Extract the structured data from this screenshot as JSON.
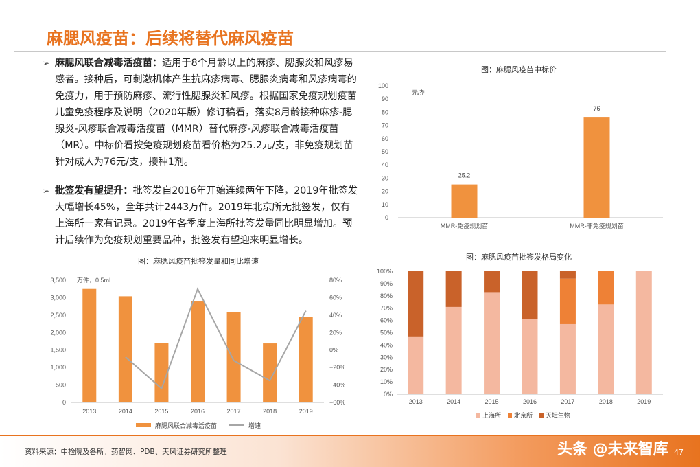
{
  "page": {
    "title": "麻腮风疫苗：后续将替代麻风疫苗",
    "source": "资料来源：中检院及各所，药智网、PDB、天风证券研究所整理",
    "watermark": "头条 @未来智库",
    "page_number": "47"
  },
  "bullets": [
    {
      "marker": "➢",
      "bold": "麻腮风联合减毒活疫苗：",
      "text": "适用于8个月龄以上的麻疹、腮腺炎和风疹易感者。接种后，可刺激机体产生抗麻疹病毒、腮腺炎病毒和风疹病毒的免疫力，用于预防麻疹、流行性腮腺炎和风疹。根据国家免疫规划疫苗儿童免疫程序及说明（2020年版）修订稿看，落实8月龄接种麻疹-腮腺炎-风疹联合减毒活疫苗（MMR）替代麻疹-风疹联合减毒活疫苗（MR）。中标价看按免疫规划疫苗看价格为25.2元/支，非免疫规划苗针对成人为76元/支，接种1剂。"
    },
    {
      "marker": "➢",
      "bold": "批签发有望提升：",
      "text": "批签发自2016年开始连续两年下降，2019年批签发大幅增长45%，全年共计2443万件。2019年北京所无批签发，仅有上海所一家有记录。2019年各季度上海所批签发量同比明显增加。预计后续作为免疫规划重要品种，批签发有望迎来明显增长。"
    }
  ],
  "colors": {
    "accent": "#e8731f",
    "bar_orange": "#f0923e",
    "line_gray": "#a6a6a6",
    "shanghai": "#f4b8a0",
    "beijing": "#ee8136",
    "tiantan": "#c9622a"
  },
  "chart_data": [
    {
      "type": "bar",
      "title": "图：麻腮风疫苗中标价",
      "unit": "元/剂",
      "categories": [
        "MMR-免疫规划苗",
        "MMR-非免疫规划苗"
      ],
      "values": [
        25.2,
        76
      ],
      "data_labels": [
        "25.2",
        "76"
      ],
      "ylim": [
        0,
        100
      ],
      "yticks": [
        "0",
        "10",
        "20",
        "30",
        "40",
        "50",
        "60",
        "70",
        "80",
        "90",
        "100"
      ],
      "grid": false
    },
    {
      "type": "bar",
      "title": "图：麻腮风疫苗批签发量和同比增速",
      "unit": "万件，0.5mL",
      "categories": [
        "2013",
        "2014",
        "2015",
        "2016",
        "2017",
        "2018",
        "2019"
      ],
      "series": [
        {
          "name": "麻腮风联合减毒活疫苗",
          "type": "bar",
          "axis": "left",
          "values": [
            3250,
            3040,
            1700,
            2890,
            2580,
            1690,
            2443
          ]
        },
        {
          "name": "增速",
          "type": "line",
          "axis": "right",
          "values": [
            null,
            -8,
            -44,
            70,
            -12,
            -35,
            45
          ]
        }
      ],
      "ylim_left": [
        0,
        3500
      ],
      "yticks_left": [
        "0",
        "500",
        "1,000",
        "1,500",
        "2,000",
        "2,500",
        "3,000",
        "3,500"
      ],
      "ylim_right": [
        -60,
        80
      ],
      "yticks_right": [
        "−60%",
        "−40%",
        "−20%",
        "0%",
        "20%",
        "40%",
        "60%",
        "80%"
      ],
      "legend": "bottom"
    },
    {
      "type": "bar",
      "stacked": true,
      "title": "图：麻腮风疫苗批签发格局变化",
      "categories": [
        "2013",
        "2014",
        "2015",
        "2016",
        "2017",
        "2018",
        "2019"
      ],
      "series": [
        {
          "name": "上海所",
          "values": [
            47,
            71,
            83,
            61,
            57,
            73,
            100
          ]
        },
        {
          "name": "北京所",
          "values": [
            0,
            0,
            0,
            0,
            37,
            27,
            0
          ]
        },
        {
          "name": "天坛生物",
          "values": [
            53,
            29,
            17,
            39,
            6,
            0,
            0
          ]
        }
      ],
      "ylim": [
        0,
        100
      ],
      "yticks": [
        "0%",
        "10%",
        "20%",
        "30%",
        "40%",
        "50%",
        "60%",
        "70%",
        "80%",
        "90%",
        "100%"
      ],
      "legend": "bottom"
    }
  ]
}
